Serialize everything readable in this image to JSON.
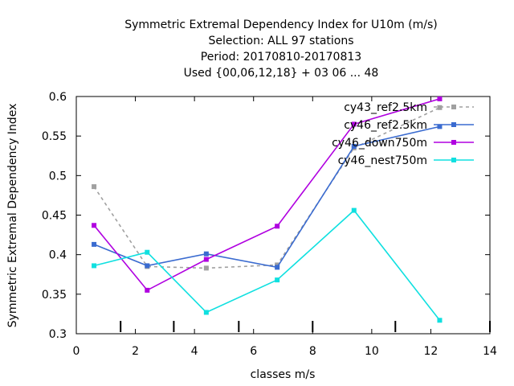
{
  "chart_data": {
    "type": "line",
    "title_lines": [
      "Symmetric Extremal Dependency Index  for U10m (m/s)",
      "Selection: ALL      97 stations",
      "Period: 20170810-20170813",
      "Used {00,06,12,18} + 03 06 ... 48"
    ],
    "xlabel": "classes m/s",
    "ylabel": "Symmetric Extremal Dependency Index",
    "xlim": [
      0,
      14
    ],
    "ylim": [
      0.3,
      0.6
    ],
    "x_ticks": [
      "0",
      "2",
      "4",
      "6",
      "8",
      "10",
      "12",
      "14"
    ],
    "y_ticks": [
      "0.3",
      "0.35",
      "0.4",
      "0.45",
      "0.5",
      "0.55",
      "0.6"
    ],
    "class_boundaries": [
      1.5,
      3.3,
      5.5,
      8.0,
      10.8,
      14.0
    ],
    "grid": false,
    "legend_position": "top-right",
    "series": [
      {
        "name": "cy43_ref2.5km",
        "color": "#a0a0a0",
        "dashed": true,
        "x": [
          0.6,
          2.4,
          4.4,
          6.8,
          9.4,
          12.3
        ],
        "y": [
          0.486,
          0.385,
          0.383,
          0.387,
          0.535,
          0.586
        ]
      },
      {
        "name": "cy46_ref2.5km",
        "color": "#3a6bd0",
        "dashed": false,
        "x": [
          0.6,
          2.4,
          4.4,
          6.8,
          9.4,
          12.3
        ],
        "y": [
          0.413,
          0.386,
          0.401,
          0.384,
          0.537,
          0.562
        ]
      },
      {
        "name": "cy46_down750m",
        "color": "#b000e0",
        "dashed": false,
        "x": [
          0.6,
          2.4,
          4.4,
          6.8,
          9.4,
          12.3
        ],
        "y": [
          0.437,
          0.355,
          0.394,
          0.436,
          0.565,
          0.597
        ]
      },
      {
        "name": "cy46_nest750m",
        "color": "#10e0e0",
        "dashed": false,
        "x": [
          0.6,
          2.4,
          4.4,
          6.8,
          9.4,
          12.3
        ],
        "y": [
          0.386,
          0.403,
          0.327,
          0.368,
          0.456,
          0.317
        ]
      }
    ]
  }
}
